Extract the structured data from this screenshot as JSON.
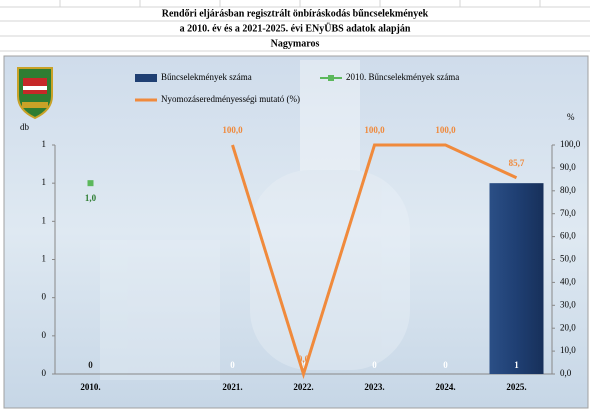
{
  "chart_data": {
    "type": "bar",
    "title": "Rendőri eljárásban regisztrált önbíráskodás bűncselekmények",
    "subtitle": "a 2010. év és a 2021-2025. évi ENyÜBS adatok alapján",
    "location": "Nagymaros",
    "y_label": "db",
    "y2_label": "%",
    "categories": [
      "2010.",
      null,
      "2021.",
      "2022.",
      "2023.",
      "2024.",
      "2025."
    ],
    "ylim": [
      0,
      1.2
    ],
    "yticks": [
      0,
      {
        "value": 0.2,
        "label": "0"
      },
      {
        "value": 0.4,
        "label": "0"
      },
      {
        "value": 0.6,
        "label": "1"
      },
      {
        "value": 0.8,
        "label": "1"
      },
      1,
      {
        "value": 1.2,
        "label": "1"
      }
    ],
    "y2lim": [
      0,
      100
    ],
    "y2ticks": [
      {
        "value": 0,
        "label": "0,0"
      },
      {
        "value": 10,
        "label": "10,0"
      },
      {
        "value": 20,
        "label": "20,0"
      },
      {
        "value": 30,
        "label": "30,0"
      },
      {
        "value": 40,
        "label": "40,0"
      },
      {
        "value": 50,
        "label": "50,0"
      },
      {
        "value": 60,
        "label": "60,0"
      },
      {
        "value": 70,
        "label": "70,0"
      },
      {
        "value": 80,
        "label": "80,0"
      },
      {
        "value": 90,
        "label": "90,0"
      },
      {
        "value": 100,
        "label": "100,0"
      }
    ],
    "series": [
      {
        "name": "Bűncselekmények száma",
        "type": "bar",
        "color": "#1f3f73",
        "values": [
          0,
          null,
          0,
          0,
          0,
          0,
          1
        ]
      },
      {
        "name": "2010. Bűncselekmények száma",
        "type": "scatter",
        "color": "#5cb85c",
        "values": [
          1,
          null,
          null,
          null,
          null,
          null,
          null
        ],
        "value_labels": [
          "1,0",
          null,
          null,
          null,
          null,
          null,
          null
        ]
      },
      {
        "name": "Nyomozáseredményességi mutató (%)",
        "type": "line",
        "axis": "y2",
        "color": "#f08a3c",
        "values": [
          null,
          null,
          100,
          0,
          100,
          100,
          85.7
        ],
        "value_labels": [
          null,
          null,
          "100,0",
          "0,0",
          "100,0",
          "100,0",
          "85,7"
        ]
      }
    ]
  }
}
